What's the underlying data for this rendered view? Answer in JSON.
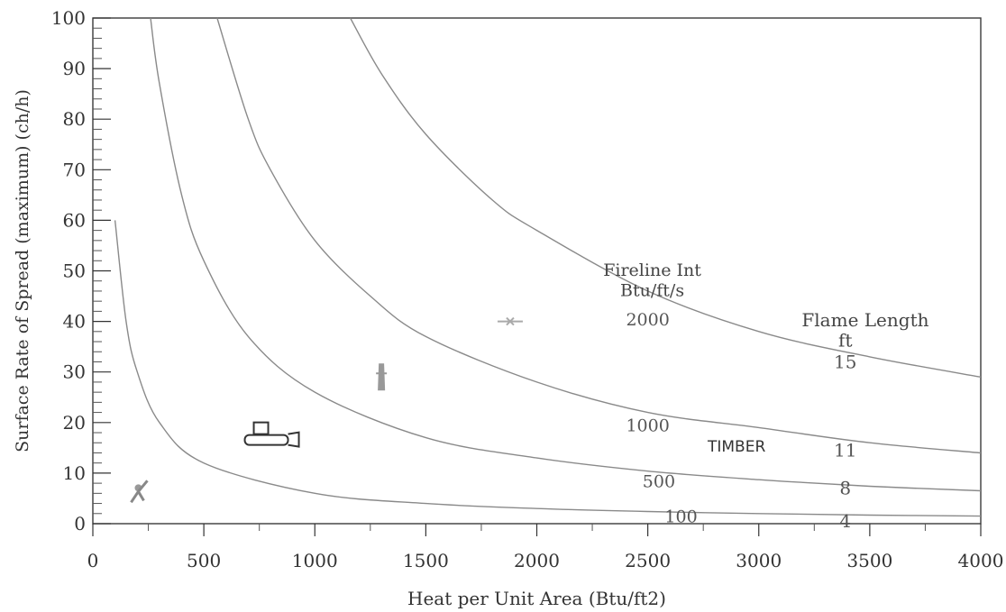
{
  "chart_data": {
    "type": "line",
    "title": "",
    "xlabel": "Heat per Unit Area (Btu/ft2)",
    "ylabel": "Surface Rate of Spread (maximum) (ch/h)",
    "xlim": [
      0,
      4000
    ],
    "ylim": [
      0,
      100
    ],
    "x_ticks": [
      0,
      500,
      1000,
      1500,
      2000,
      2500,
      3000,
      3500,
      4000
    ],
    "x_tick_labels": [
      "0",
      "500",
      "1000",
      "1500",
      "2000",
      "2500",
      "3000",
      "3500",
      "4000"
    ],
    "y_ticks": [
      0,
      10,
      20,
      30,
      40,
      50,
      60,
      70,
      80,
      90,
      100
    ],
    "y_tick_labels": [
      "0",
      "10",
      "20",
      "30",
      "40",
      "50",
      "60",
      "70",
      "80",
      "90",
      "100"
    ],
    "grid": false,
    "fireline_header": [
      "Fireline Int",
      "Btu/ft/s"
    ],
    "flame_header": [
      "Flame Length",
      "ft"
    ],
    "region_label": "TIMBER",
    "series": [
      {
        "name": "100",
        "fireline_intensity": 100,
        "flame_length": "4",
        "x": [
          100,
          150,
          200,
          300,
          500,
          1000,
          1500,
          2000,
          2500,
          3000,
          3500,
          4000
        ],
        "y": [
          60,
          40,
          30,
          20,
          12,
          6,
          4,
          3,
          2.4,
          2,
          1.7,
          1.5
        ]
      },
      {
        "name": "500",
        "fireline_intensity": 500,
        "flame_length": "8",
        "x": [
          260,
          300,
          400,
          500,
          700,
          1000,
          1500,
          2000,
          2500,
          3000,
          3500,
          4000
        ],
        "y": [
          100,
          87,
          65,
          52,
          37,
          26,
          17,
          13,
          10.4,
          8.7,
          7.4,
          6.5
        ]
      },
      {
        "name": "1000",
        "fireline_intensity": 1000,
        "flame_length": "11",
        "x": [
          560,
          700,
          800,
          1000,
          1250,
          1500,
          2000,
          2500,
          3000,
          3500,
          4000
        ],
        "y": [
          100,
          80,
          70,
          56,
          45,
          37,
          28,
          22,
          19,
          16,
          14
        ]
      },
      {
        "name": "2000",
        "fireline_intensity": 2000,
        "flame_length": "15",
        "x": [
          1160,
          1300,
          1500,
          1800,
          2000,
          2500,
          3000,
          3500,
          4000
        ],
        "y": [
          100,
          89,
          77,
          64,
          58,
          46,
          38,
          33,
          29
        ]
      }
    ]
  }
}
